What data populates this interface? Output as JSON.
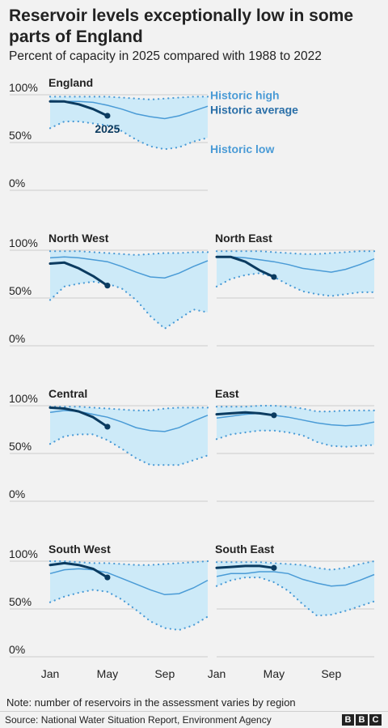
{
  "header": {
    "title": "Reservoir levels exceptionally low in some parts of England",
    "subtitle": "Percent of capacity in 2025 compared with 1988 to 2022"
  },
  "legend": {
    "high": "Historic high",
    "average": "Historic average",
    "low": "Historic low",
    "current": "2025"
  },
  "colors": {
    "band": "#cdeaf8",
    "average": "#4a9bd6",
    "dots": "#4a9bd6",
    "current": "#0b3b60",
    "grid": "#cccccc",
    "legend_high": "#4a9bd6",
    "legend_average": "#2a6fa8",
    "legend_low": "#4a9bd6"
  },
  "chart_data": {
    "type": "line",
    "x_labels": [
      "Jan",
      "May",
      "Sep"
    ],
    "y_ticks": [
      "0%",
      "50%",
      "100%"
    ],
    "ylim": [
      0,
      100
    ],
    "x_range": [
      "Jan",
      "Dec"
    ],
    "panels": [
      {
        "title": "England",
        "high": [
          98,
          98,
          98,
          98,
          98,
          97,
          96,
          95,
          96,
          97,
          98,
          98
        ],
        "average": [
          94,
          93,
          93,
          92,
          89,
          85,
          80,
          77,
          75,
          78,
          83,
          88
        ],
        "low": [
          65,
          72,
          72,
          70,
          68,
          62,
          53,
          46,
          43,
          45,
          51,
          55
        ],
        "current": [
          93,
          93,
          90,
          85,
          78
        ]
      },
      {
        "title": "North West",
        "high": [
          99,
          99,
          99,
          98,
          97,
          96,
          95,
          96,
          97,
          97,
          98,
          98
        ],
        "average": [
          92,
          93,
          92,
          90,
          88,
          83,
          77,
          72,
          71,
          76,
          83,
          89
        ],
        "low": [
          48,
          62,
          65,
          67,
          65,
          60,
          48,
          31,
          18,
          28,
          38,
          35
        ],
        "current": [
          86,
          87,
          81,
          73,
          63
        ]
      },
      {
        "title": "North East",
        "high": [
          99,
          99,
          99,
          99,
          98,
          97,
          96,
          96,
          97,
          98,
          99,
          99
        ],
        "average": [
          93,
          93,
          92,
          90,
          88,
          85,
          81,
          79,
          77,
          80,
          85,
          91
        ],
        "low": [
          62,
          70,
          74,
          76,
          72,
          64,
          57,
          54,
          52,
          54,
          56,
          56
        ],
        "current": [
          93,
          93,
          88,
          79,
          72
        ]
      },
      {
        "title": "Central",
        "high": [
          99,
          99,
          99,
          98,
          97,
          96,
          95,
          95,
          97,
          98,
          98,
          98
        ],
        "average": [
          93,
          95,
          94,
          91,
          88,
          83,
          77,
          74,
          73,
          77,
          84,
          90
        ],
        "low": [
          60,
          68,
          70,
          70,
          64,
          55,
          45,
          38,
          38,
          38,
          43,
          48
        ],
        "current": [
          98,
          97,
          94,
          88,
          78
        ]
      },
      {
        "title": "East",
        "high": [
          99,
          99,
          99,
          100,
          100,
          99,
          97,
          94,
          94,
          95,
          95,
          95
        ],
        "average": [
          87,
          89,
          91,
          92,
          90,
          88,
          85,
          82,
          80,
          79,
          80,
          83
        ],
        "low": [
          65,
          70,
          72,
          74,
          74,
          72,
          69,
          62,
          58,
          57,
          58,
          59
        ],
        "current": [
          91,
          92,
          93,
          92,
          90
        ]
      },
      {
        "title": "South West",
        "high": [
          100,
          100,
          99,
          98,
          98,
          97,
          96,
          96,
          97,
          98,
          99,
          100
        ],
        "average": [
          87,
          91,
          92,
          91,
          88,
          82,
          76,
          70,
          65,
          66,
          72,
          80
        ],
        "low": [
          57,
          63,
          67,
          70,
          68,
          60,
          49,
          37,
          30,
          28,
          33,
          42
        ],
        "current": [
          96,
          98,
          96,
          92,
          83
        ]
      },
      {
        "title": "South East",
        "high": [
          99,
          99,
          99,
          99,
          98,
          97,
          96,
          93,
          91,
          93,
          97,
          100
        ],
        "average": [
          84,
          87,
          87,
          89,
          89,
          87,
          81,
          77,
          74,
          75,
          80,
          86
        ],
        "low": [
          74,
          80,
          83,
          83,
          78,
          69,
          55,
          43,
          44,
          48,
          53,
          58
        ],
        "current": [
          93,
          94,
          95,
          95,
          93
        ]
      }
    ]
  },
  "footer": {
    "note": "Note: number of reservoirs in the assessment varies by region",
    "source": "Source: National Water Situation Report, Environment Agency",
    "logo_letters": [
      "B",
      "B",
      "C"
    ]
  }
}
